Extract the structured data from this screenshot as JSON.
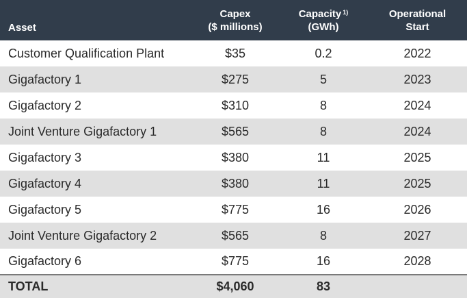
{
  "header": {
    "asset": "Asset",
    "capex_line1": "Capex",
    "capex_line2": "($ millions)",
    "capacity_line1": "Capacity",
    "capacity_footnote": "1)",
    "capacity_line2": "(GWh)",
    "operational_line1": "Operational",
    "operational_line2": "Start"
  },
  "rows": [
    {
      "asset": "Customer Qualification Plant",
      "capex": "$35",
      "capacity": "0.2",
      "start": "2022"
    },
    {
      "asset": "Gigafactory 1",
      "capex": "$275",
      "capacity": "5",
      "start": "2023"
    },
    {
      "asset": "Gigafactory 2",
      "capex": "$310",
      "capacity": "8",
      "start": "2024"
    },
    {
      "asset": "Joint Venture Gigafactory 1",
      "capex": "$565",
      "capacity": "8",
      "start": "2024"
    },
    {
      "asset": "Gigafactory 3",
      "capex": "$380",
      "capacity": "11",
      "start": "2025"
    },
    {
      "asset": "Gigafactory 4",
      "capex": "$380",
      "capacity": "11",
      "start": "2025"
    },
    {
      "asset": "Gigafactory 5",
      "capex": "$775",
      "capacity": "16",
      "start": "2026"
    },
    {
      "asset": "Joint Venture Gigafactory 2",
      "capex": "$565",
      "capacity": "8",
      "start": "2027"
    },
    {
      "asset": "Gigafactory 6",
      "capex": "$775",
      "capacity": "16",
      "start": "2028"
    }
  ],
  "total": {
    "label": "TOTAL",
    "capex": "$4,060",
    "capacity": "83",
    "start": ""
  },
  "colors": {
    "header_bg": "#313d4b",
    "stripe_bg": "#e0e0e0",
    "text": "#2a2a2a"
  }
}
